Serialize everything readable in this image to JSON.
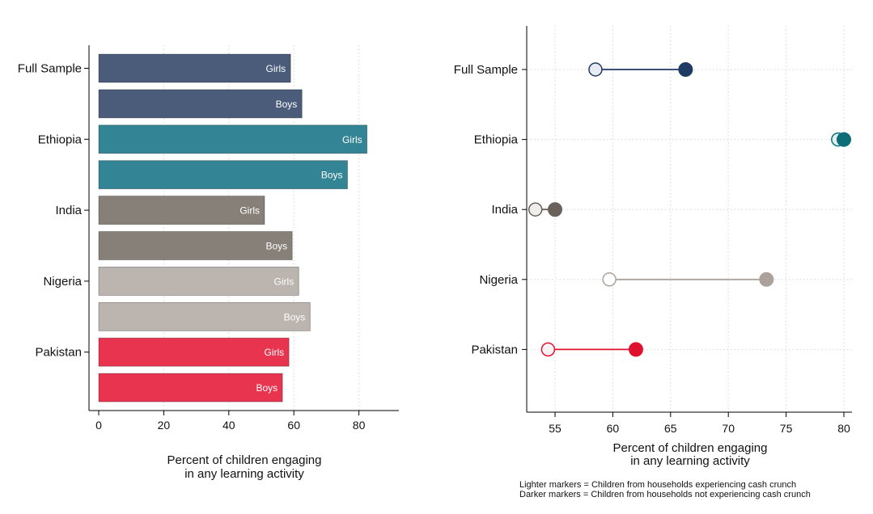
{
  "chart_data": [
    {
      "type": "bar",
      "orientation": "horizontal",
      "categories": [
        "Full Sample",
        "Ethiopia",
        "India",
        "Nigeria",
        "Pakistan"
      ],
      "bars": [
        {
          "category": "Full Sample",
          "label": "Girls",
          "value": 59,
          "color": "#4b5c7b"
        },
        {
          "category": "Full Sample",
          "label": "Boys",
          "value": 62.5,
          "color": "#4b5c7b"
        },
        {
          "category": "Ethiopia",
          "label": "Girls",
          "value": 82.5,
          "color": "#338595"
        },
        {
          "category": "Ethiopia",
          "label": "Boys",
          "value": 76.5,
          "color": "#338595"
        },
        {
          "category": "India",
          "label": "Girls",
          "value": 51,
          "color": "#878079"
        },
        {
          "category": "India",
          "label": "Boys",
          "value": 59.5,
          "color": "#878079"
        },
        {
          "category": "Nigeria",
          "label": "Girls",
          "value": 61.5,
          "color": "#bcb4ae"
        },
        {
          "category": "Nigeria",
          "label": "Boys",
          "value": 65,
          "color": "#bcb4ae"
        },
        {
          "category": "Pakistan",
          "label": "Girls",
          "value": 58.5,
          "color": "#e8344f"
        },
        {
          "category": "Pakistan",
          "label": "Boys",
          "value": 56.5,
          "color": "#e8344f"
        }
      ],
      "xlim": [
        0,
        92
      ],
      "xticks": [
        0,
        20,
        40,
        60,
        80
      ],
      "xlabel_lines": [
        "Percent of children engaging",
        "in any learning activity"
      ],
      "grid": true
    },
    {
      "type": "scatter",
      "style": "dumbbell",
      "categories": [
        "Full Sample",
        "Ethiopia",
        "India",
        "Nigeria",
        "Pakistan"
      ],
      "points": [
        {
          "category": "Full Sample",
          "lighter": 58.5,
          "darker": 66.3,
          "color": "#1f3a63",
          "light_color": "#e8ecf2"
        },
        {
          "category": "Ethiopia",
          "lighter": 79.5,
          "darker": 80,
          "color": "#0e6e78",
          "light_color": "#e4eef0"
        },
        {
          "category": "India",
          "lighter": 53.3,
          "darker": 55,
          "color": "#6a625a",
          "light_color": "#efeeec"
        },
        {
          "category": "Nigeria",
          "lighter": 59.7,
          "darker": 73.3,
          "color": "#aaa29b",
          "light_color": "#ffffff"
        },
        {
          "category": "Pakistan",
          "lighter": 54.4,
          "darker": 62,
          "color": "#e0102f",
          "light_color": "#fdf2f4"
        }
      ],
      "xlim": [
        52.5,
        80.7
      ],
      "xticks": [
        55,
        60,
        65,
        70,
        75,
        80
      ],
      "xlabel_lines": [
        "Percent of children engaging",
        "in any learning activity"
      ],
      "grid": true
    }
  ],
  "notes": [
    "Lighter markers = Children from households experiencing cash crunch",
    "Darker markers = Children from households not experiencing cash crunch"
  ]
}
